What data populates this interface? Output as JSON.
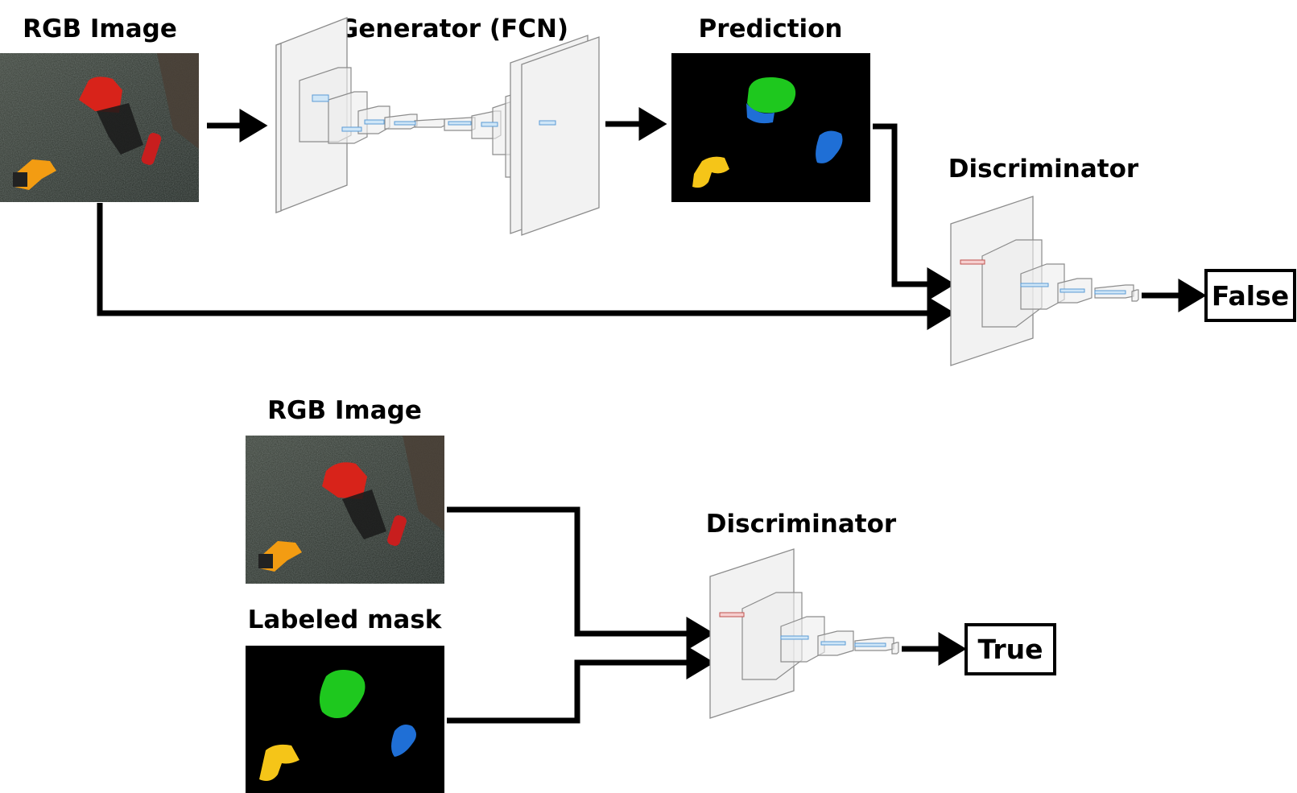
{
  "top": {
    "rgb_label": "RGB Image",
    "generator_label": "Generator (FCN)",
    "prediction_label": "Prediction",
    "discriminator_label": "Discriminator",
    "output_label": "False"
  },
  "bottom": {
    "rgb_label": "RGB Image",
    "mask_label": "Labeled mask",
    "discriminator_label": "Discriminator",
    "output_label": "True"
  },
  "colors": {
    "mask_green": "#1ec81e",
    "mask_blue": "#1f6fd6",
    "mask_yellow": "#f5c518",
    "arrow": "#000000"
  }
}
